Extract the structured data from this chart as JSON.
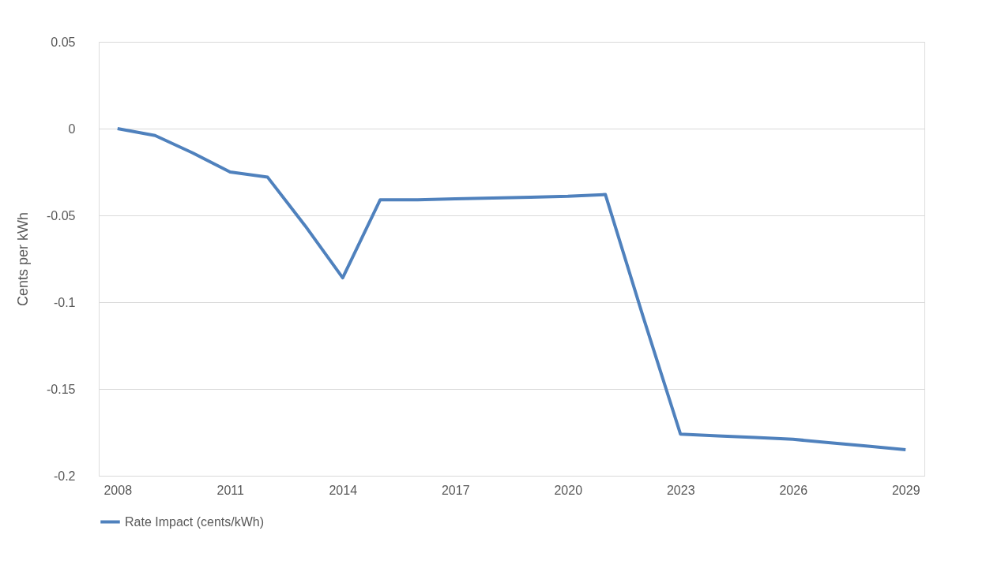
{
  "chart_data": {
    "type": "line",
    "ylabel": "Cents per kWh",
    "categories": [
      "2008",
      null,
      null,
      "2011",
      null,
      null,
      "2014",
      null,
      null,
      "2017",
      null,
      null,
      "2020",
      null,
      null,
      "2023",
      null,
      null,
      "2026",
      null,
      null,
      "2029"
    ],
    "series": [
      {
        "name": "Rate Impact (cents/kWh)",
        "color": "#4f81bd",
        "values": [
          0.0,
          -0.004,
          -0.014,
          -0.025,
          -0.028,
          -0.056,
          -0.086,
          -0.041,
          -0.041,
          -0.0405,
          -0.04,
          -0.0395,
          -0.039,
          -0.038,
          -0.108,
          -0.176,
          -0.177,
          -0.178,
          -0.179,
          -0.181,
          -0.183,
          -0.185
        ]
      }
    ],
    "ylim": [
      -0.2,
      0.05
    ],
    "yticks": [
      -0.2,
      -0.15,
      -0.1,
      -0.05,
      0,
      0.05
    ],
    "grid": "y",
    "legend": "bottom",
    "marker": "none",
    "line_style": "solid"
  }
}
